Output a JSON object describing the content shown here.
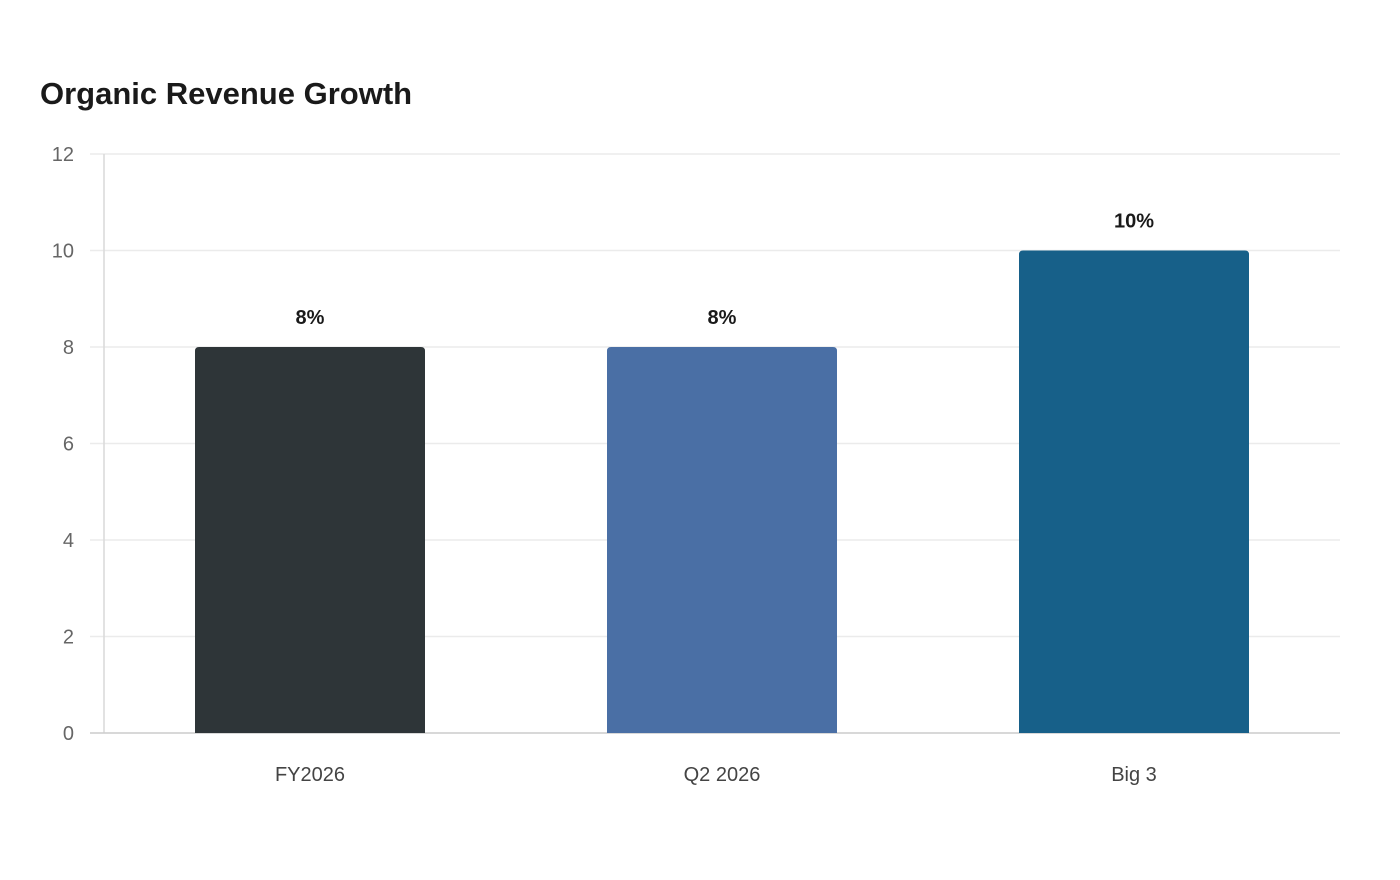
{
  "chart_data": {
    "type": "bar",
    "title": "Organic Revenue Growth",
    "xlabel": "",
    "ylabel": "",
    "categories": [
      "FY2026",
      "Q2 2026",
      "Big 3"
    ],
    "values": [
      8,
      8,
      10
    ],
    "value_labels": [
      "8%",
      "8%",
      "10%"
    ],
    "colors": [
      "#2e3538",
      "#4a6fa5",
      "#176089"
    ],
    "ylim": [
      0,
      12
    ],
    "yticks": [
      0,
      2,
      4,
      6,
      8,
      10,
      12
    ],
    "grid": true,
    "legend": "none"
  }
}
